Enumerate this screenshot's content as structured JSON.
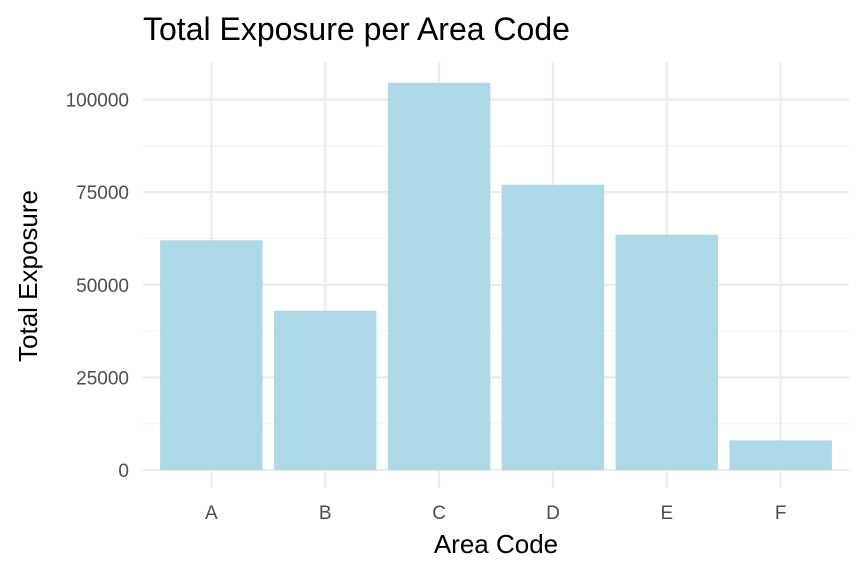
{
  "chart_data": {
    "type": "bar",
    "title": "Total Exposure per Area Code",
    "xlabel": "Area Code",
    "ylabel": "Total Exposure",
    "categories": [
      "A",
      "B",
      "C",
      "D",
      "E",
      "F"
    ],
    "values": [
      62000,
      43000,
      104500,
      77000,
      63500,
      8000
    ],
    "ylim": [
      0,
      110000
    ],
    "yticks": [
      0,
      25000,
      50000,
      75000,
      100000
    ],
    "ytick_labels": [
      "0",
      "25000",
      "50000",
      "75000",
      "100000"
    ],
    "grid": true,
    "legend": "none",
    "bar_color": "#add8e6"
  }
}
